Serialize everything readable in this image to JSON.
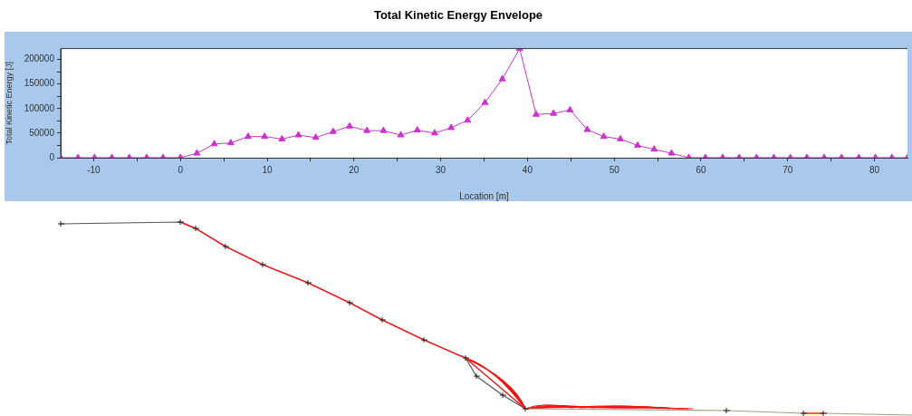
{
  "chart_data": {
    "type": "line",
    "title": "Total Kinetic Energy Envelope",
    "xlabel": "Location [m]",
    "ylabel": "Total Kinetic Energy [J]",
    "x": [
      -13.8,
      -11.8,
      -9.9,
      -7.9,
      -5.9,
      -3.9,
      -2.0,
      0,
      1.9,
      3.9,
      5.8,
      7.8,
      9.7,
      11.7,
      13.6,
      15.6,
      17.6,
      19.5,
      21.5,
      23.4,
      25.4,
      27.3,
      29.3,
      31.2,
      33.1,
      35.1,
      37.1,
      39.1,
      41.0,
      43.0,
      44.9,
      46.9,
      48.8,
      50.7,
      52.7,
      54.6,
      56.6,
      58.6,
      60.5,
      62.5,
      64.4,
      66.4,
      68.4,
      70.3,
      72.2,
      74.2,
      76.2,
      78.2,
      80.1,
      82.0,
      83.8
    ],
    "series": [
      {
        "color": "#cc33cc",
        "values": [
          0,
          0,
          0,
          0,
          0,
          0,
          0,
          0,
          9000,
          28000,
          30000,
          43000,
          43000,
          38000,
          46000,
          41000,
          53000,
          64000,
          55000,
          55000,
          46000,
          56000,
          50000,
          61000,
          76000,
          112000,
          160000,
          222000,
          88000,
          90000,
          97000,
          57000,
          43000,
          38000,
          25000,
          17000,
          9000,
          0,
          0,
          0,
          0,
          0,
          0,
          0,
          0,
          0,
          0,
          0,
          0,
          0,
          0
        ]
      }
    ],
    "marker": "triangle",
    "line_style": "solid",
    "xlim": [
      -13.8,
      83.8
    ],
    "ylim": [
      0,
      222000
    ],
    "xticks": [
      {
        "value": -10,
        "label": "-10"
      },
      {
        "value": -5,
        "label": null
      },
      0,
      {
        "value": 5,
        "label": null
      },
      10,
      {
        "value": 15,
        "label": null
      },
      20,
      {
        "value": 25,
        "label": null
      },
      30,
      {
        "value": 35,
        "label": null
      },
      40,
      {
        "value": 45,
        "label": null
      },
      50,
      {
        "value": 55,
        "label": null
      },
      60,
      {
        "value": 65,
        "label": null
      },
      70,
      {
        "value": 75,
        "label": null
      },
      80
    ],
    "yticks": [
      0,
      {
        "value": 25000,
        "label": null
      },
      50000,
      {
        "value": 75000,
        "label": null
      },
      100000,
      {
        "value": 125000,
        "label": null
      },
      150000,
      {
        "value": 175000,
        "label": null
      },
      200000
    ]
  }
}
